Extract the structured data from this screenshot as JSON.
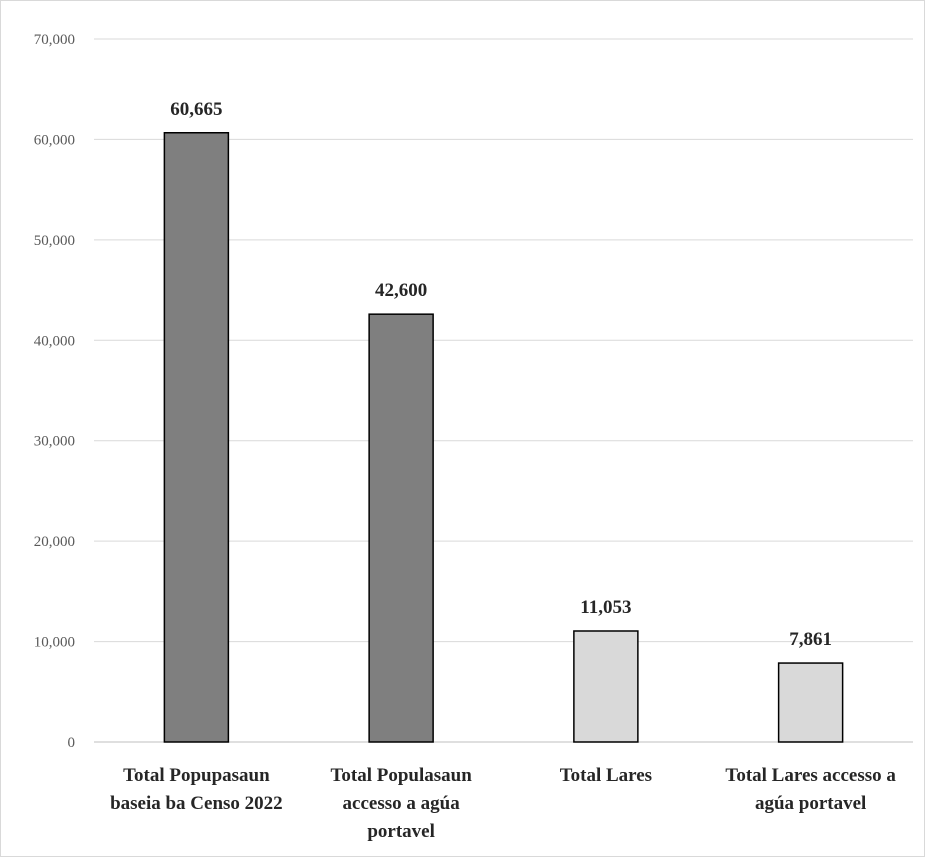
{
  "chart_data": {
    "type": "bar",
    "title": "",
    "xlabel": "",
    "ylabel": "",
    "categories": [
      [
        "Total Popupasaun",
        "baseia ba Censo 2022"
      ],
      [
        "Total Populasaun",
        "accesso a agúa",
        "portavel"
      ],
      [
        "Total Lares"
      ],
      [
        "Total Lares accesso a",
        "agúa portavel"
      ]
    ],
    "values": [
      60665,
      42600,
      11053,
      7861
    ],
    "value_labels": [
      "60,665",
      "42,600",
      "11,053",
      "7,861"
    ],
    "bar_colors": [
      "#7f7f7f",
      "#7f7f7f",
      "#d9d9d9",
      "#d9d9d9"
    ],
    "ylim": [
      0,
      70000
    ],
    "yticks": [
      0,
      10000,
      20000,
      30000,
      40000,
      50000,
      60000,
      70000
    ],
    "ytick_labels": [
      "0",
      "10,000",
      "20,000",
      "30,000",
      "40,000",
      "50,000",
      "60,000",
      "70,000"
    ],
    "grid": true,
    "legend": "none"
  }
}
